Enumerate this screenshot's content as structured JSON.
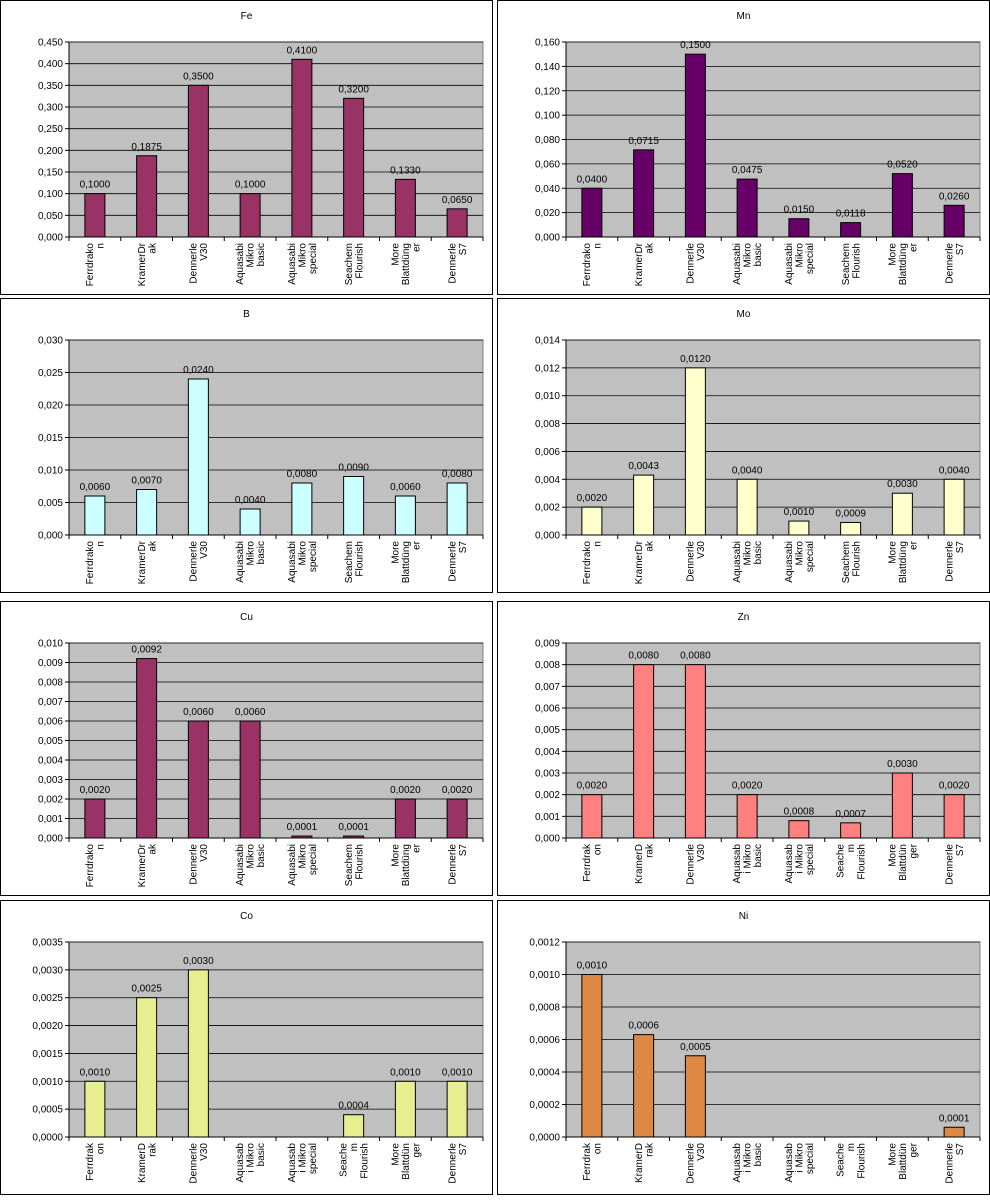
{
  "chart_data": [
    {
      "type": "bar",
      "title": "Fe",
      "categories": [
        "Ferrdrakon",
        "KramerDrak",
        "Dennerle V30",
        "Aquasabi Mikro basic",
        "Aquasabi Mikro special",
        "Seachem Flourish",
        "More Blattdünger",
        "Dennerle S7"
      ],
      "category_label_lines": [
        [
          "Ferrdrako",
          "n"
        ],
        [
          "KramerDr",
          "ak"
        ],
        [
          "Dennerle",
          "V30"
        ],
        [
          "Aquasabi",
          "Mikro",
          "basic"
        ],
        [
          "Aquasabi",
          "Mikro",
          "special"
        ],
        [
          "Seachem",
          "Flourish"
        ],
        [
          "More",
          "Blattdüng",
          "er"
        ],
        [
          "Dennerle",
          "S7"
        ]
      ],
      "values": [
        0.1,
        0.1875,
        0.35,
        0.1,
        0.41,
        0.32,
        0.133,
        0.065
      ],
      "value_labels": [
        "0,1000",
        "0,1875",
        "0,3500",
        "0,1000",
        "0,4100",
        "0,3200",
        "0,1330",
        "0,0650"
      ],
      "ylim": [
        0,
        0.45
      ],
      "yticks": [
        "0,000",
        "0,050",
        "0,100",
        "0,150",
        "0,200",
        "0,250",
        "0,300",
        "0,350",
        "0,400",
        "0,450"
      ],
      "color": "#993366",
      "grid": true,
      "legend": "none"
    },
    {
      "type": "bar",
      "title": "Mn",
      "categories": [
        "Ferrdrakon",
        "KramerDrak",
        "Dennerle V30",
        "Aquasabi Mikro basic",
        "Aquasabi Mikro special",
        "Seachem Flourish",
        "More Blattdünger",
        "Dennerle S7"
      ],
      "category_label_lines": [
        [
          "Ferrdrako",
          "n"
        ],
        [
          "KramerDr",
          "ak"
        ],
        [
          "Dennerle",
          "V30"
        ],
        [
          "Aquasabi",
          "Mikro",
          "basic"
        ],
        [
          "Aquasabi",
          "Mikro",
          "special"
        ],
        [
          "Seachem",
          "Flourish"
        ],
        [
          "More",
          "Blattdüng",
          "er"
        ],
        [
          "Dennerle",
          "S7"
        ]
      ],
      "values": [
        0.04,
        0.0715,
        0.15,
        0.0475,
        0.015,
        0.0118,
        0.052,
        0.026
      ],
      "value_labels": [
        "0,0400",
        "0,0715",
        "0,1500",
        "0,0475",
        "0,0150",
        "0,0118",
        "0,0520",
        "0,0260"
      ],
      "ylim": [
        0,
        0.16
      ],
      "yticks": [
        "0,000",
        "0,020",
        "0,040",
        "0,060",
        "0,080",
        "0,100",
        "0,120",
        "0,140",
        "0,160"
      ],
      "color": "#660066",
      "grid": true,
      "legend": "none"
    },
    {
      "type": "bar",
      "title": "B",
      "categories": [
        "Ferrdrakon",
        "KramerDrak",
        "Dennerle V30",
        "Aquasabi Mikro basic",
        "Aquasabi Mikro special",
        "Seachem Flourish",
        "More Blattdünger",
        "Dennerle S7"
      ],
      "category_label_lines": [
        [
          "Ferrdrako",
          "n"
        ],
        [
          "KramerDr",
          "ak"
        ],
        [
          "Dennerle",
          "V30"
        ],
        [
          "Aquasabi",
          "Mikro",
          "basic"
        ],
        [
          "Aquasabi",
          "Mikro",
          "special"
        ],
        [
          "Seachem",
          "Flourish"
        ],
        [
          "More",
          "Blattdüng",
          "er"
        ],
        [
          "Dennerle",
          "S7"
        ]
      ],
      "values": [
        0.006,
        0.007,
        0.024,
        0.004,
        0.008,
        0.009,
        0.006,
        0.008
      ],
      "value_labels": [
        "0,0060",
        "0,0070",
        "0,0240",
        "0,0040",
        "0,0080",
        "0,0090",
        "0,0060",
        "0,0080"
      ],
      "ylim": [
        0,
        0.03
      ],
      "yticks": [
        "0,000",
        "0,005",
        "0,010",
        "0,015",
        "0,020",
        "0,025",
        "0,030"
      ],
      "color": "#ccffff",
      "grid": true,
      "legend": "none"
    },
    {
      "type": "bar",
      "title": "Mo",
      "categories": [
        "Ferrdrakon",
        "KramerDrak",
        "Dennerle V30",
        "Aquasabi Mikro basic",
        "Aquasabi Mikro special",
        "Seachem Flourish",
        "More Blattdünger",
        "Dennerle S7"
      ],
      "category_label_lines": [
        [
          "Ferrdrako",
          "n"
        ],
        [
          "KramerDr",
          "ak"
        ],
        [
          "Dennerle",
          "V30"
        ],
        [
          "Aquasabi",
          "Mikro",
          "basic"
        ],
        [
          "Aquasabi",
          "Mikro",
          "special"
        ],
        [
          "Seachem",
          "Flourish"
        ],
        [
          "More",
          "Blattdüng",
          "er"
        ],
        [
          "Dennerle",
          "S7"
        ]
      ],
      "values": [
        0.002,
        0.0043,
        0.012,
        0.004,
        0.001,
        0.0009,
        0.003,
        0.004
      ],
      "value_labels": [
        "0,0020",
        "0,0043",
        "0,0120",
        "0,0040",
        "0,0010",
        "0,0009",
        "0,0030",
        "0,0040"
      ],
      "ylim": [
        0,
        0.014
      ],
      "yticks": [
        "0,000",
        "0,002",
        "0,004",
        "0,006",
        "0,008",
        "0,010",
        "0,012",
        "0,014"
      ],
      "color": "#ffffcc",
      "grid": true,
      "legend": "none"
    },
    {
      "type": "bar",
      "title": "Cu",
      "categories": [
        "Ferrdrakon",
        "KramerDrak",
        "Dennerle V30",
        "Aquasabi Mikro basic",
        "Aquasabi Mikro special",
        "Seachem Flourish",
        "More Blattdünger",
        "Dennerle S7"
      ],
      "category_label_lines": [
        [
          "Ferrdrako",
          "n"
        ],
        [
          "KramerDr",
          "ak"
        ],
        [
          "Dennerle",
          "V30"
        ],
        [
          "Aquasabi",
          "Mikro",
          "basic"
        ],
        [
          "Aquasabi",
          "Mikro",
          "special"
        ],
        [
          "Seachem",
          "Flourish"
        ],
        [
          "More",
          "Blattdüng",
          "er"
        ],
        [
          "Dennerle",
          "S7"
        ]
      ],
      "values": [
        0.002,
        0.0092,
        0.006,
        0.006,
        0.0001,
        0.0001,
        0.002,
        0.002
      ],
      "value_labels": [
        "0,0020",
        "0,0092",
        "0,0060",
        "0,0060",
        "0,0001",
        "0,0001",
        "0,0020",
        "0,0020"
      ],
      "ylim": [
        0,
        0.01
      ],
      "yticks": [
        "0,000",
        "0,001",
        "0,002",
        "0,003",
        "0,004",
        "0,005",
        "0,006",
        "0,007",
        "0,008",
        "0,009",
        "0,010"
      ],
      "color": "#993366",
      "grid": true,
      "legend": "none"
    },
    {
      "type": "bar",
      "title": "Zn",
      "categories": [
        "Ferrdrakon",
        "KramerDrak",
        "Dennerle V30",
        "Aquasabi Mikro basic",
        "Aquasabi Mikro special",
        "Seachem Flourish",
        "More Blattdünger",
        "Dennerle S7"
      ],
      "category_label_lines": [
        [
          "Ferrdrak",
          "on"
        ],
        [
          "KramerD",
          "rak"
        ],
        [
          "Dennerle",
          "V30"
        ],
        [
          "Aquasab",
          "i Mikro",
          "basic"
        ],
        [
          "Aquasab",
          "i Mikro",
          "special"
        ],
        [
          "Seache",
          "m",
          "Flourish"
        ],
        [
          "More",
          "Blattdün",
          "ger"
        ],
        [
          "Dennerle",
          "S7"
        ]
      ],
      "values": [
        0.002,
        0.008,
        0.008,
        0.002,
        0.0008,
        0.0007,
        0.003,
        0.002
      ],
      "value_labels": [
        "0,0020",
        "0,0080",
        "0,0080",
        "0,0020",
        "0,0008",
        "0,0007",
        "0,0030",
        "0,0020"
      ],
      "ylim": [
        0,
        0.009
      ],
      "yticks": [
        "0,000",
        "0,001",
        "0,002",
        "0,003",
        "0,004",
        "0,005",
        "0,006",
        "0,007",
        "0,008",
        "0,009"
      ],
      "color": "#ff8080",
      "grid": true,
      "legend": "none"
    },
    {
      "type": "bar",
      "title": "Co",
      "categories": [
        "Ferrdrakon",
        "KramerDrak",
        "Dennerle V30",
        "Aquasabi Mikro basic",
        "Aquasabi Mikro special",
        "Seachem Flourish",
        "More Blattdünger",
        "Dennerle S7"
      ],
      "category_label_lines": [
        [
          "Ferrdrak",
          "on"
        ],
        [
          "KramerD",
          "rak"
        ],
        [
          "Dennerle",
          "V30"
        ],
        [
          "Aquasab",
          "i Mikro",
          "basic"
        ],
        [
          "Aquasab",
          "i Mikro",
          "special"
        ],
        [
          "Seache",
          "m",
          "Flourish"
        ],
        [
          "More",
          "Blattdün",
          "ger"
        ],
        [
          "Dennerle",
          "S7"
        ]
      ],
      "values": [
        0.001,
        0.0025,
        0.003,
        null,
        null,
        0.0004,
        0.001,
        0.001
      ],
      "value_labels": [
        "0,0010",
        "0,0025",
        "0,0030",
        "",
        "",
        "0,0004",
        "0,0010",
        "0,0010"
      ],
      "ylim": [
        0,
        0.0035
      ],
      "yticks": [
        "0,0000",
        "0,0005",
        "0,0010",
        "0,0015",
        "0,0020",
        "0,0025",
        "0,0030",
        "0,0035"
      ],
      "color": "#e6ee90",
      "grid": true,
      "legend": "none"
    },
    {
      "type": "bar",
      "title": "Ni",
      "categories": [
        "Ferrdrakon",
        "KramerDrak",
        "Dennerle V30",
        "Aquasabi Mikro basic",
        "Aquasabi Mikro special",
        "Seachem Flourish",
        "More Blattdünger",
        "Dennerle S7"
      ],
      "category_label_lines": [
        [
          "Ferrdrak",
          "on"
        ],
        [
          "KramerD",
          "rak"
        ],
        [
          "Dennerle",
          "V30"
        ],
        [
          "Aquasab",
          "i Mikro",
          "basic"
        ],
        [
          "Aquasab",
          "i Mikro",
          "special"
        ],
        [
          "Seache",
          "m",
          "Flourish"
        ],
        [
          "More",
          "Blattdün",
          "ger"
        ],
        [
          "Dennerle",
          "S7"
        ]
      ],
      "values": [
        0.001,
        0.00063,
        0.0005,
        null,
        null,
        null,
        null,
        6e-05
      ],
      "value_labels": [
        "0,0010",
        "0,0006",
        "0,0005",
        "",
        "",
        "",
        "",
        "0,0001"
      ],
      "ylim": [
        0,
        0.0012
      ],
      "yticks": [
        "0,0000",
        "0,0002",
        "0,0004",
        "0,0006",
        "0,0008",
        "0,0010",
        "0,0012"
      ],
      "color": "#dd8844",
      "grid": true,
      "legend": "none"
    }
  ]
}
